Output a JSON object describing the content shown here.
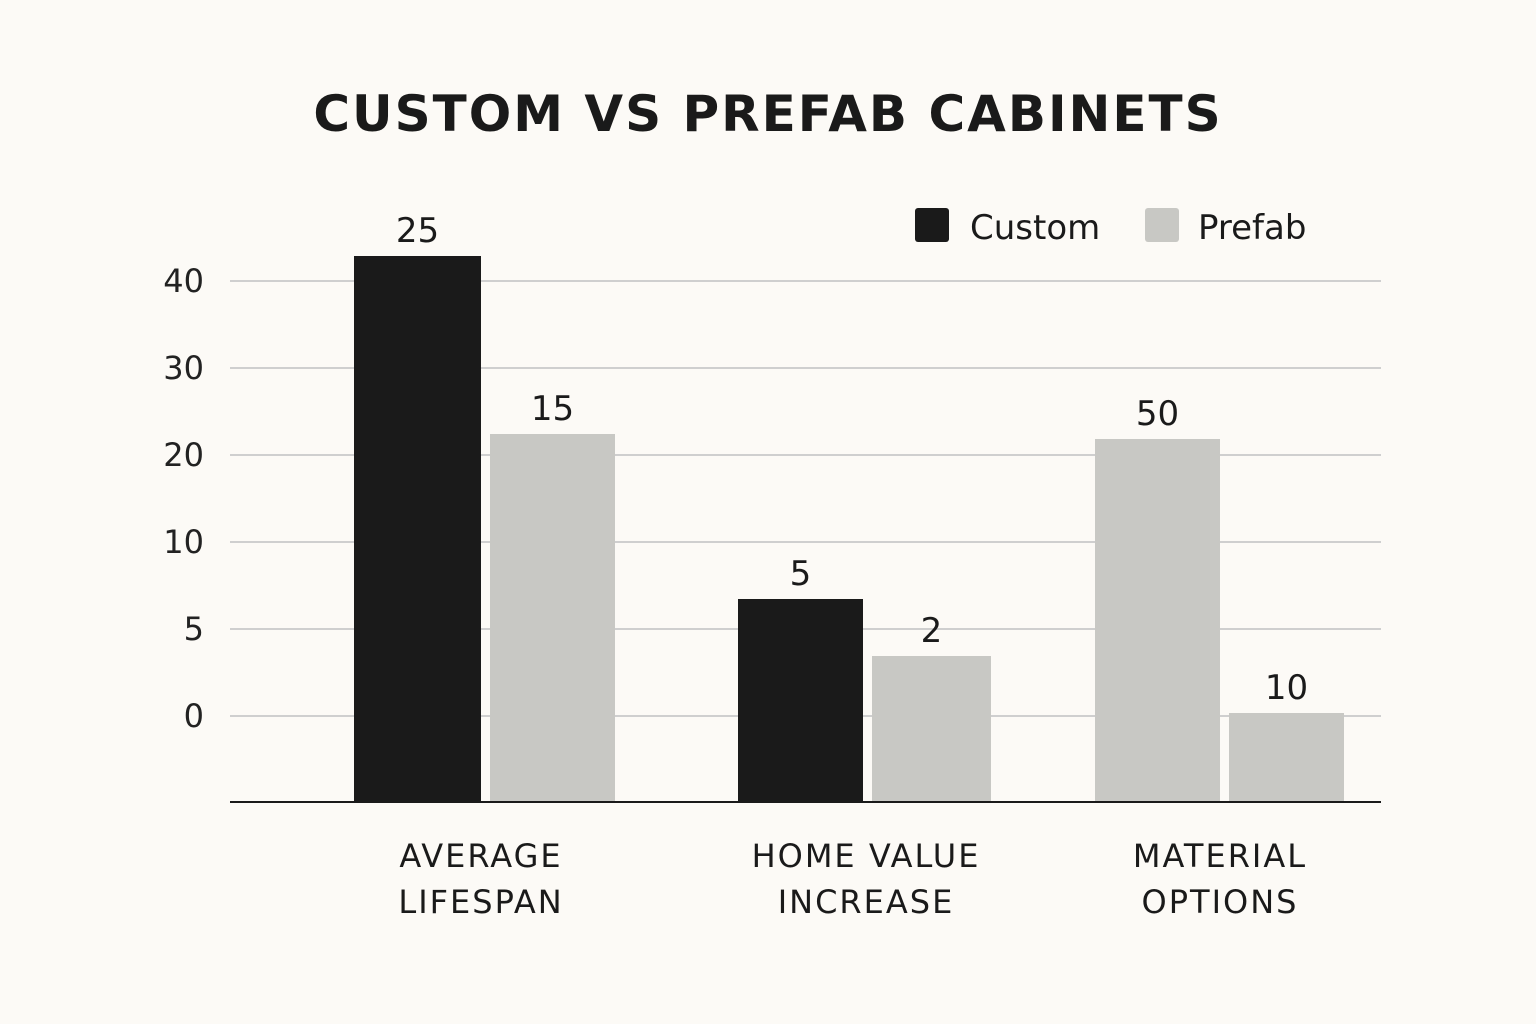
{
  "chart_data": {
    "type": "bar",
    "title": "CUSTOM VS PREFAB CABINETS",
    "xlabel": "",
    "ylabel": "",
    "categories": [
      [
        "AVERAGE",
        "LIFESPAN"
      ],
      [
        "HOME VALUE",
        "INCREASE"
      ],
      [
        "MATERIAL",
        "OPTIONS"
      ]
    ],
    "y_ticks": [
      "40",
      "30",
      "20",
      "10",
      "5",
      "0"
    ],
    "legend_position": "top-right",
    "grid": true,
    "series": [
      {
        "name": "Custom",
        "color": "#1a1a1a",
        "values": [
          25,
          5,
          50
        ],
        "bar_colors": [
          "#1a1a1a",
          "#1a1a1a",
          "#c8c8c4"
        ],
        "data_labels": [
          "25",
          "5",
          "50"
        ]
      },
      {
        "name": "Prefab",
        "color": "#c8c8c4",
        "values": [
          15,
          2,
          10
        ],
        "bar_colors": [
          "#c8c8c4",
          "#c8c8c4",
          "#c8c8c4"
        ],
        "data_labels": [
          "15",
          "2",
          "10"
        ]
      }
    ]
  }
}
